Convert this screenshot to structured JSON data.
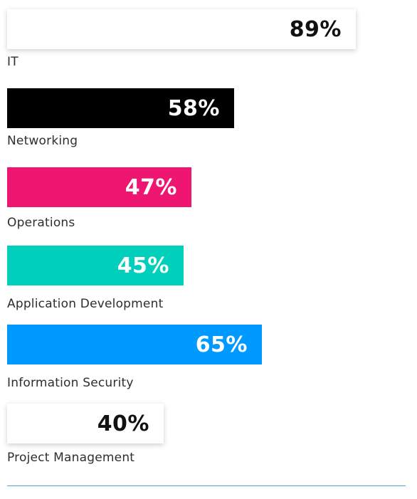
{
  "chart_data": {
    "type": "bar",
    "orientation": "horizontal",
    "value_suffix": "%",
    "xlim": [
      0,
      100
    ],
    "categories": [
      "IT",
      "Networking",
      "Operations",
      "Application Development",
      "Information Security",
      "Project Management"
    ],
    "values": [
      89,
      58,
      47,
      45,
      65,
      40
    ],
    "value_labels": [
      "89%",
      "58%",
      "47%",
      "45%",
      "65%",
      "40%"
    ],
    "bar_colors": [
      "#ffffff",
      "#000000",
      "#ee1671",
      "#00d0bb",
      "#0099ff",
      "#ffffff"
    ],
    "value_label_colors": [
      "#111111",
      "#ffffff",
      "#ffffff",
      "#ffffff",
      "#ffffff",
      "#111111"
    ]
  }
}
